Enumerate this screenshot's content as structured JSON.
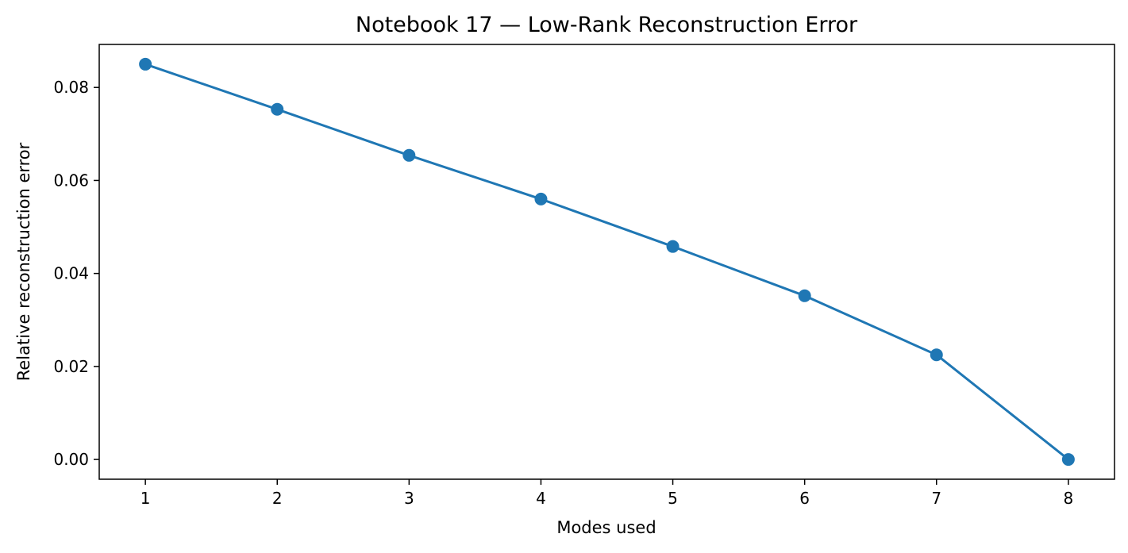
{
  "chart_data": {
    "type": "line",
    "title": "Notebook 17 — Low-Rank Reconstruction Error",
    "xlabel": "Modes used",
    "ylabel": "Relative reconstruction error",
    "xlim": [
      0.65,
      8.35
    ],
    "ylim": [
      -0.00425,
      0.08925
    ],
    "xticks": [
      1,
      2,
      3,
      4,
      5,
      6,
      7,
      8
    ],
    "yticks": [
      0.0,
      0.02,
      0.04,
      0.06,
      0.08
    ],
    "ytick_labels": [
      "0.00",
      "0.02",
      "0.04",
      "0.06",
      "0.08"
    ],
    "grid": false,
    "series": [
      {
        "x": [
          1,
          2,
          3,
          4,
          5,
          6,
          7,
          8
        ],
        "values": [
          0.085,
          0.0753,
          0.0654,
          0.056,
          0.0458,
          0.0352,
          0.0225,
          0.0
        ],
        "color": "#1f77b4",
        "marker": "circle"
      }
    ]
  }
}
